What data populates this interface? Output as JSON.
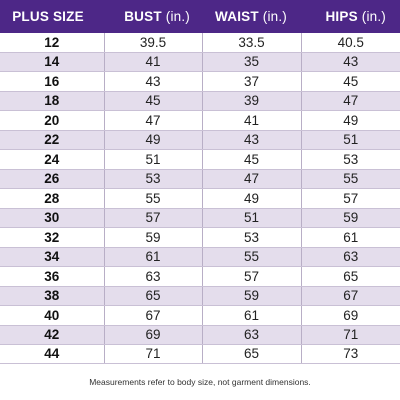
{
  "headers": {
    "size": "PLUS SIZE",
    "bust": "BUST",
    "waist": "WAIST",
    "hips": "HIPS",
    "unit": "(in.)"
  },
  "rows": [
    {
      "size": "12",
      "bust": "39.5",
      "waist": "33.5",
      "hips": "40.5"
    },
    {
      "size": "14",
      "bust": "41",
      "waist": "35",
      "hips": "43"
    },
    {
      "size": "16",
      "bust": "43",
      "waist": "37",
      "hips": "45"
    },
    {
      "size": "18",
      "bust": "45",
      "waist": "39",
      "hips": "47"
    },
    {
      "size": "20",
      "bust": "47",
      "waist": "41",
      "hips": "49"
    },
    {
      "size": "22",
      "bust": "49",
      "waist": "43",
      "hips": "51"
    },
    {
      "size": "24",
      "bust": "51",
      "waist": "45",
      "hips": "53"
    },
    {
      "size": "26",
      "bust": "53",
      "waist": "47",
      "hips": "55"
    },
    {
      "size": "28",
      "bust": "55",
      "waist": "49",
      "hips": "57"
    },
    {
      "size": "30",
      "bust": "57",
      "waist": "51",
      "hips": "59"
    },
    {
      "size": "32",
      "bust": "59",
      "waist": "53",
      "hips": "61"
    },
    {
      "size": "34",
      "bust": "61",
      "waist": "55",
      "hips": "63"
    },
    {
      "size": "36",
      "bust": "63",
      "waist": "57",
      "hips": "65"
    },
    {
      "size": "38",
      "bust": "65",
      "waist": "59",
      "hips": "67"
    },
    {
      "size": "40",
      "bust": "67",
      "waist": "61",
      "hips": "69"
    },
    {
      "size": "42",
      "bust": "69",
      "waist": "63",
      "hips": "71"
    },
    {
      "size": "44",
      "bust": "71",
      "waist": "65",
      "hips": "73"
    }
  ],
  "footnote": "Measurements refer to body size, not garment dimensions.",
  "colors": {
    "header_bg": "#4d2787",
    "stripe_bg": "#e4ddec"
  }
}
